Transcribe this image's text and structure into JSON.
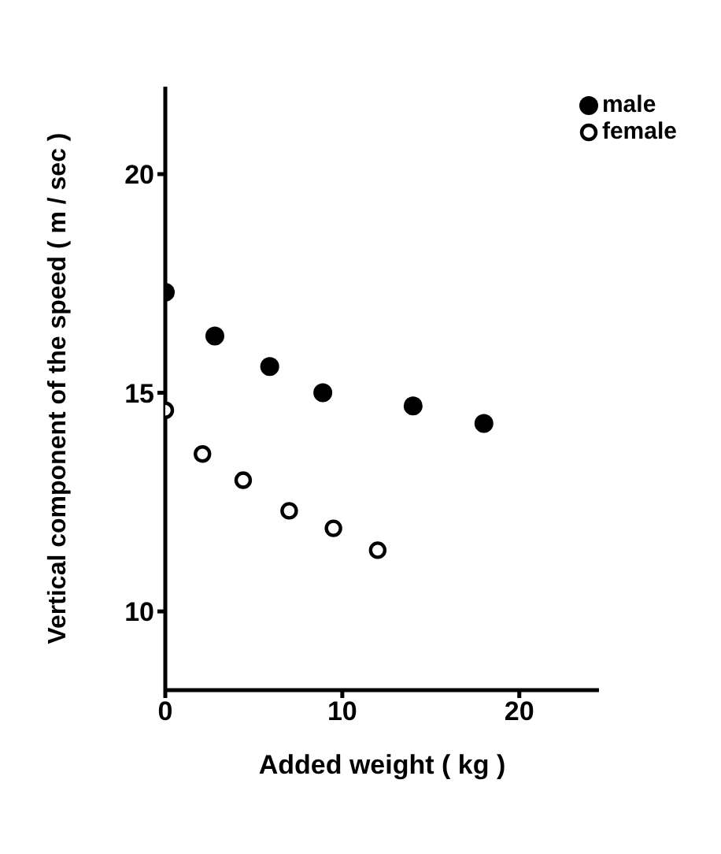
{
  "chart_data": {
    "type": "scatter",
    "xlabel": "Added weight  ( kg )",
    "ylabel": "Vertical component of the speed   ( m / sec )",
    "xlim": [
      0,
      24.5
    ],
    "xticks": [
      0,
      10,
      20
    ],
    "ylim": [
      8.2,
      22
    ],
    "yticks": [
      10,
      15,
      20
    ],
    "grid": false,
    "legend": "top right",
    "marker": "circle",
    "series": [
      {
        "name": "male",
        "color": "#000000",
        "x": [
          0,
          2.8,
          5.9,
          8.9,
          14,
          18
        ],
        "values": [
          17.3,
          16.3,
          15.6,
          15,
          14.7,
          14.3
        ]
      },
      {
        "name": "female",
        "color": "#000000",
        "x": [
          0,
          2.1,
          4.4,
          7,
          9.5,
          12
        ],
        "values": [
          14.6,
          13.6,
          13,
          12.3,
          11.9,
          11.4
        ]
      }
    ]
  }
}
